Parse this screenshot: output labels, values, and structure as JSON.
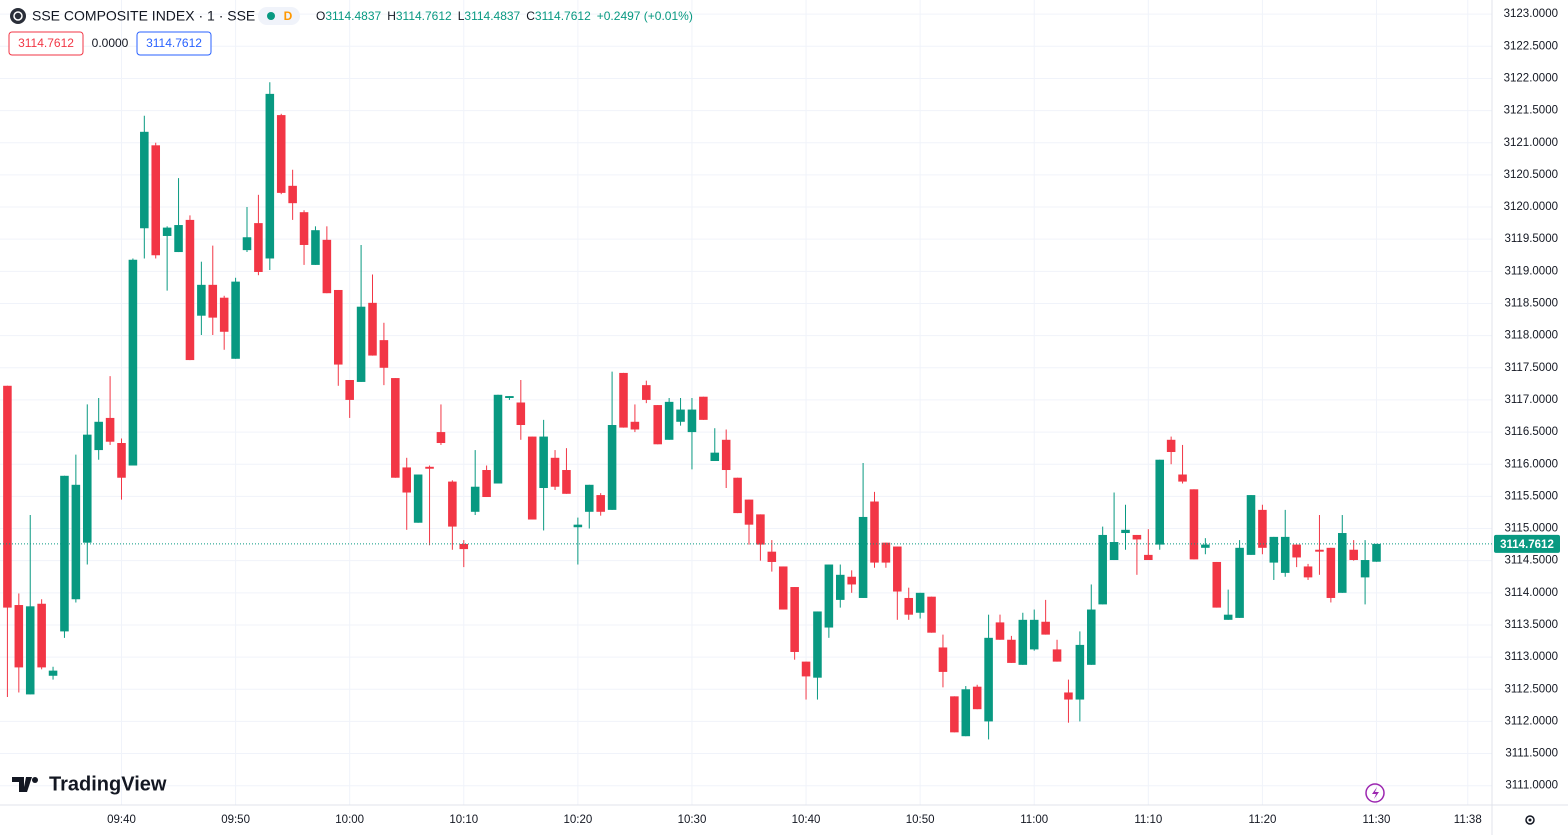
{
  "chart_data": {
    "type": "candlestick",
    "title": "SSE COMPOSITE INDEX · 1 · SSE",
    "badge": "D",
    "ohlc_legend": [
      {
        "label": "O",
        "value": 3114.4837
      },
      {
        "label": "H",
        "value": 3114.7612
      },
      {
        "label": "L",
        "value": 3114.4837
      },
      {
        "label": "C",
        "value": 3114.7612
      }
    ],
    "change_label": "+0.2497 (+0.01%)",
    "price_boxes": [
      "3114.7612",
      "0.0000",
      "3114.7612"
    ],
    "brand": "TradingView",
    "up_color": "#089981",
    "down_color": "#f23645",
    "grid": true,
    "x": [
      "09:30",
      "09:31",
      "09:32",
      "09:33",
      "09:34",
      "09:35",
      "09:36",
      "09:37",
      "09:38",
      "09:39",
      "09:40",
      "09:41",
      "09:42",
      "09:43",
      "09:44",
      "09:45",
      "09:46",
      "09:47",
      "09:48",
      "09:49",
      "09:50",
      "09:51",
      "09:52",
      "09:53",
      "09:54",
      "09:55",
      "09:56",
      "09:57",
      "09:58",
      "09:59",
      "10:00",
      "10:01",
      "10:02",
      "10:03",
      "10:04",
      "10:05",
      "10:06",
      "10:07",
      "10:08",
      "10:09",
      "10:10",
      "10:11",
      "10:12",
      "10:13",
      "10:14",
      "10:15",
      "10:16",
      "10:17",
      "10:18",
      "10:19",
      "10:20",
      "10:21",
      "10:22",
      "10:23",
      "10:24",
      "10:25",
      "10:26",
      "10:27",
      "10:28",
      "10:29",
      "10:30",
      "10:31",
      "10:32",
      "10:33",
      "10:34",
      "10:35",
      "10:36",
      "10:37",
      "10:38",
      "10:39",
      "10:40",
      "10:41",
      "10:42",
      "10:43",
      "10:44",
      "10:45",
      "10:46",
      "10:47",
      "10:48",
      "10:49",
      "10:50",
      "10:51",
      "10:52",
      "10:53",
      "10:54",
      "10:55",
      "10:56",
      "10:57",
      "10:58",
      "10:59",
      "11:00",
      "11:01",
      "11:02",
      "11:03",
      "11:04",
      "11:05",
      "11:06",
      "11:07",
      "11:08",
      "11:09",
      "11:10",
      "11:11",
      "11:12",
      "11:13",
      "11:14",
      "11:15",
      "11:16",
      "11:17",
      "11:18",
      "11:19",
      "11:20",
      "11:21",
      "11:22",
      "11:23",
      "11:24",
      "11:25",
      "11:26",
      "11:27",
      "11:28",
      "11:29",
      "11:30"
    ],
    "open": [
      3117.22,
      3113.81,
      3112.42,
      3113.83,
      3112.71,
      3113.4,
      3113.9,
      3114.78,
      3116.22,
      3116.72,
      3116.33,
      3115.98,
      3119.67,
      3120.96,
      3119.55,
      3119.3,
      3119.8,
      3118.31,
      3118.79,
      3118.59,
      3117.64,
      3119.33,
      3119.75,
      3119.2,
      3121.43,
      3120.33,
      3119.92,
      3119.1,
      3119.49,
      3118.71,
      3117.31,
      3117.28,
      3118.51,
      3117.93,
      3117.34,
      3115.95,
      3115.09,
      3115.96,
      3116.5,
      3115.73,
      3114.76,
      3115.26,
      3115.91,
      3115.7,
      3117.03,
      3116.96,
      3116.43,
      3115.63,
      3116.1,
      3115.91,
      3115.02,
      3115.26,
      3115.52,
      3115.29,
      3117.42,
      3116.66,
      3117.23,
      3116.92,
      3116.38,
      3116.66,
      3116.5,
      3117.05,
      3116.05,
      3116.38,
      3115.79,
      3115.45,
      3115.22,
      3114.64,
      3114.41,
      3114.09,
      3112.93,
      3112.68,
      3113.46,
      3113.89,
      3114.25,
      3113.92,
      3115.42,
      3114.78,
      3114.72,
      3113.92,
      3113.69,
      3113.94,
      3113.15,
      3112.39,
      3111.77,
      3112.54,
      3112.0,
      3113.54,
      3113.27,
      3112.88,
      3113.12,
      3113.55,
      3113.12,
      3112.45,
      3112.34,
      3112.88,
      3113.82,
      3114.51,
      3114.93,
      3114.9,
      3114.59,
      3114.75,
      3116.38,
      3115.84,
      3115.61,
      3114.7,
      3114.48,
      3113.58,
      3113.61,
      3114.59,
      3115.29,
      3114.47,
      3114.31,
      3114.75,
      3114.41,
      3114.67,
      3114.7,
      3114.0,
      3114.67,
      3114.24,
      3114.4837
    ],
    "high": [
      3117.22,
      3113.99,
      3115.21,
      3113.9,
      3112.85,
      3115.82,
      3116.15,
      3116.93,
      3117.03,
      3117.37,
      3116.4,
      3119.2,
      3121.42,
      3121.0,
      3119.7,
      3120.45,
      3119.87,
      3119.15,
      3119.4,
      3118.62,
      3118.9,
      3120.0,
      3120.19,
      3121.94,
      3121.45,
      3120.58,
      3119.95,
      3119.7,
      3119.7,
      3118.71,
      3117.31,
      3119.41,
      3118.95,
      3118.2,
      3117.34,
      3116.1,
      3115.84,
      3115.98,
      3116.93,
      3115.75,
      3114.82,
      3116.22,
      3115.98,
      3117.08,
      3117.06,
      3117.31,
      3116.43,
      3116.69,
      3116.22,
      3116.25,
      3115.17,
      3115.68,
      3115.55,
      3117.44,
      3117.42,
      3116.93,
      3117.3,
      3116.92,
      3117.03,
      3117.03,
      3117.03,
      3117.05,
      3116.56,
      3116.54,
      3115.79,
      3115.45,
      3115.22,
      3114.82,
      3114.41,
      3114.09,
      3112.93,
      3113.71,
      3114.44,
      3114.44,
      3114.35,
      3116.02,
      3115.57,
      3114.78,
      3114.72,
      3114.08,
      3114.0,
      3113.94,
      3113.35,
      3112.39,
      3112.55,
      3112.57,
      3113.66,
      3113.66,
      3113.33,
      3113.69,
      3113.74,
      3113.89,
      3113.27,
      3112.65,
      3113.4,
      3114.13,
      3115.03,
      3115.56,
      3115.37,
      3114.9,
      3114.99,
      3116.07,
      3116.43,
      3116.3,
      3115.61,
      3114.85,
      3114.48,
      3114.05,
      3114.82,
      3115.52,
      3115.37,
      3114.87,
      3115.29,
      3114.75,
      3114.45,
      3115.21,
      3114.7,
      3115.21,
      3114.82,
      3114.82,
      3114.7612
    ],
    "low": [
      3112.38,
      3112.45,
      3112.42,
      3112.81,
      3112.65,
      3113.3,
      3113.85,
      3114.44,
      3116.07,
      3116.3,
      3115.45,
      3115.98,
      3119.2,
      3119.2,
      3118.7,
      3119.3,
      3117.62,
      3118.01,
      3118.01,
      3117.78,
      3117.64,
      3119.3,
      3118.94,
      3119.02,
      3120.2,
      3119.8,
      3119.1,
      3119.1,
      3118.66,
      3117.22,
      3116.72,
      3117.28,
      3117.69,
      3117.23,
      3115.79,
      3114.98,
      3115.09,
      3114.74,
      3116.3,
      3114.67,
      3114.4,
      3115.21,
      3115.49,
      3115.7,
      3117.0,
      3116.38,
      3115.14,
      3114.97,
      3115.6,
      3115.54,
      3114.44,
      3115.0,
      3115.2,
      3115.29,
      3116.57,
      3116.5,
      3116.95,
      3116.31,
      3116.38,
      3116.6,
      3115.92,
      3116.69,
      3116.05,
      3115.63,
      3115.24,
      3114.75,
      3114.5,
      3114.33,
      3113.74,
      3112.96,
      3112.34,
      3112.34,
      3113.3,
      3113.77,
      3114.0,
      3113.92,
      3114.39,
      3114.39,
      3113.58,
      3113.58,
      3113.6,
      3113.38,
      3112.53,
      3111.83,
      3111.77,
      3112.19,
      3111.72,
      3113.27,
      3112.91,
      3112.88,
      3113.1,
      3113.35,
      3112.93,
      3111.98,
      3112.0,
      3112.88,
      3113.82,
      3114.51,
      3114.67,
      3114.28,
      3114.51,
      3114.67,
      3116.0,
      3115.7,
      3114.52,
      3114.6,
      3113.77,
      3113.58,
      3113.61,
      3114.59,
      3114.6,
      3114.2,
      3114.25,
      3114.4,
      3114.2,
      3114.28,
      3113.85,
      3114.0,
      3114.5,
      3113.82,
      3114.4837
    ],
    "close": [
      3113.77,
      3112.84,
      3113.79,
      3112.84,
      3112.79,
      3115.82,
      3115.68,
      3116.46,
      3116.66,
      3116.35,
      3115.79,
      3119.18,
      3121.17,
      3119.25,
      3119.68,
      3119.72,
      3117.62,
      3118.79,
      3118.28,
      3118.06,
      3118.84,
      3119.53,
      3118.99,
      3121.76,
      3120.22,
      3120.06,
      3119.41,
      3119.64,
      3118.66,
      3117.55,
      3117.0,
      3118.45,
      3117.69,
      3117.5,
      3115.79,
      3115.56,
      3115.84,
      3115.93,
      3116.33,
      3115.03,
      3114.68,
      3115.65,
      3115.49,
      3117.08,
      3117.06,
      3116.61,
      3115.14,
      3116.43,
      3115.65,
      3115.54,
      3115.06,
      3115.68,
      3115.26,
      3116.61,
      3116.57,
      3116.54,
      3117.0,
      3116.31,
      3116.97,
      3116.85,
      3116.85,
      3116.69,
      3116.18,
      3115.91,
      3115.24,
      3115.06,
      3114.75,
      3114.48,
      3113.74,
      3113.08,
      3112.7,
      3113.71,
      3114.44,
      3114.28,
      3114.13,
      3115.18,
      3114.47,
      3114.47,
      3114.02,
      3113.66,
      3114.0,
      3113.38,
      3112.77,
      3111.83,
      3112.5,
      3112.19,
      3113.3,
      3113.27,
      3112.91,
      3113.58,
      3113.58,
      3113.35,
      3112.93,
      3112.34,
      3113.19,
      3113.74,
      3114.9,
      3114.79,
      3114.98,
      3114.83,
      3114.51,
      3116.07,
      3116.19,
      3115.73,
      3114.52,
      3114.75,
      3113.77,
      3113.66,
      3114.7,
      3115.52,
      3114.7,
      3114.87,
      3114.87,
      3114.55,
      3114.24,
      3114.64,
      3113.92,
      3114.93,
      3114.51,
      3114.51,
      3114.7612
    ],
    "xlim": [
      "09:29",
      "11:41"
    ],
    "xticks": [
      "09:40",
      "09:50",
      "10:00",
      "10:10",
      "10:20",
      "10:30",
      "10:40",
      "10:50",
      "11:00",
      "11:10",
      "11:20",
      "11:30",
      "11:38"
    ],
    "ylim": [
      3110.7,
      3123.22
    ],
    "yticks": [
      {
        "value": 3111.0,
        "label": "3111.0000"
      },
      {
        "value": 3111.5,
        "label": "3111.5000"
      },
      {
        "value": 3112.0,
        "label": "3112.0000"
      },
      {
        "value": 3112.5,
        "label": "3112.5000"
      },
      {
        "value": 3113.0,
        "label": "3113.0000"
      },
      {
        "value": 3113.5,
        "label": "3113.5000"
      },
      {
        "value": 3114.0,
        "label": "3114.0000"
      },
      {
        "value": 3114.5,
        "label": "3114.5000"
      },
      {
        "value": 3115.0,
        "label": "3115.0000"
      },
      {
        "value": 3115.5,
        "label": "3115.5000"
      },
      {
        "value": 3116.0,
        "label": "3116.0000"
      },
      {
        "value": 3116.5,
        "label": "3116.5000"
      },
      {
        "value": 3117.0,
        "label": "3117.0000"
      },
      {
        "value": 3117.5,
        "label": "3117.5000"
      },
      {
        "value": 3118.0,
        "label": "3118.0000"
      },
      {
        "value": 3118.5,
        "label": "3118.5000"
      },
      {
        "value": 3119.0,
        "label": "3119.0000"
      },
      {
        "value": 3119.5,
        "label": "3119.5000"
      },
      {
        "value": 3120.0,
        "label": "3120.0000"
      },
      {
        "value": 3120.5,
        "label": "3120.5000"
      },
      {
        "value": 3121.0,
        "label": "3121.0000"
      },
      {
        "value": 3121.5,
        "label": "3121.5000"
      },
      {
        "value": 3122.0,
        "label": "3122.0000"
      },
      {
        "value": 3122.5,
        "label": "3122.5000"
      },
      {
        "value": 3123.0,
        "label": "3123.0000"
      }
    ]
  }
}
